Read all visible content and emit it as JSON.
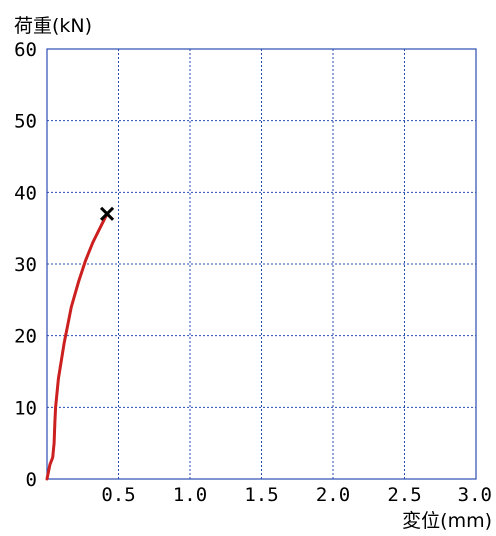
{
  "chart_data": {
    "type": "line",
    "ylabel": "荷重(kN)",
    "xlabel": "変位(mm)",
    "xlim": [
      0,
      3.0
    ],
    "ylim": [
      0,
      60
    ],
    "x_ticks": [
      0.5,
      1.0,
      1.5,
      2.0,
      2.5,
      3.0
    ],
    "x_tick_labels": [
      "0.5",
      "1.0",
      "1.5",
      "2.0",
      "2.5",
      "3.0"
    ],
    "y_ticks": [
      0,
      10,
      20,
      30,
      40,
      50,
      60
    ],
    "y_tick_labels": [
      "0",
      "10",
      "20",
      "30",
      "40",
      "50",
      "60"
    ],
    "grid": true,
    "series": [
      {
        "color": "#cc1f1f",
        "x": [
          0.0,
          0.02,
          0.04,
          0.05,
          0.055,
          0.06,
          0.08,
          0.12,
          0.17,
          0.22,
          0.27,
          0.32,
          0.37,
          0.42
        ],
        "y": [
          0,
          2,
          3,
          5,
          8,
          10,
          14,
          19,
          24,
          27.5,
          30.5,
          33,
          35,
          37
        ]
      }
    ],
    "annotations": [
      {
        "type": "failure-marker",
        "symbol": "×",
        "x": 0.42,
        "y": 37,
        "color": "#000000"
      }
    ]
  }
}
